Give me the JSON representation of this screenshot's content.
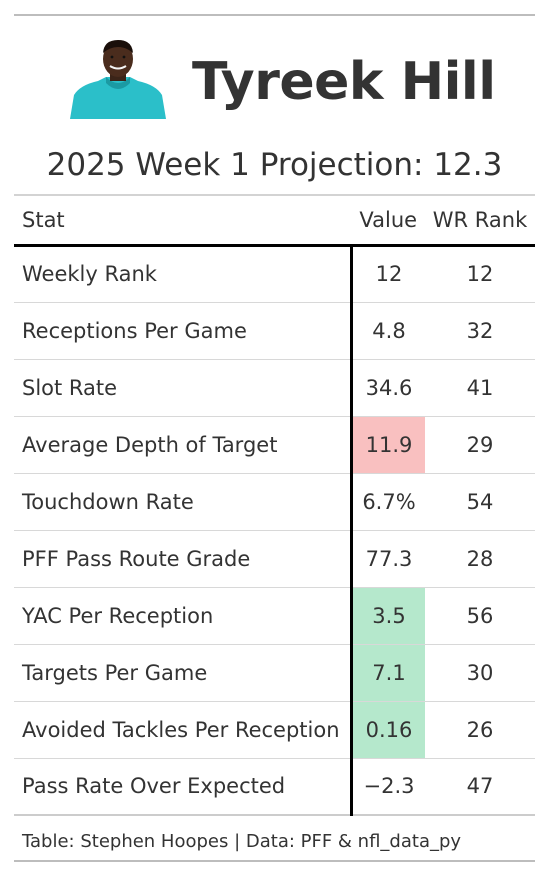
{
  "header": {
    "player_name": "Tyreek Hill",
    "subtitle": "2025 Week 1 Projection: 12.3"
  },
  "colors": {
    "highlight_red": "#f9c0c0",
    "highlight_green": "#b5e8cc",
    "jersey_teal": "#2bbfc9",
    "text": "#333333"
  },
  "table": {
    "columns": [
      "Stat",
      "Value",
      "WR Rank"
    ],
    "rows": [
      {
        "stat": "Weekly Rank",
        "value": "12",
        "rank": "12",
        "highlight": ""
      },
      {
        "stat": "Receptions Per Game",
        "value": "4.8",
        "rank": "32",
        "highlight": ""
      },
      {
        "stat": "Slot Rate",
        "value": "34.6",
        "rank": "41",
        "highlight": ""
      },
      {
        "stat": "Average Depth of Target",
        "value": "11.9",
        "rank": "29",
        "highlight": "red"
      },
      {
        "stat": "Touchdown Rate",
        "value": "6.7%",
        "rank": "54",
        "highlight": ""
      },
      {
        "stat": "PFF Pass Route Grade",
        "value": "77.3",
        "rank": "28",
        "highlight": ""
      },
      {
        "stat": "YAC Per Reception",
        "value": "3.5",
        "rank": "56",
        "highlight": "green"
      },
      {
        "stat": "Targets Per Game",
        "value": "7.1",
        "rank": "30",
        "highlight": "green"
      },
      {
        "stat": "Avoided Tackles Per Reception",
        "value": "0.16",
        "rank": "26",
        "highlight": "green"
      },
      {
        "stat": "Pass Rate Over Expected",
        "value": "−2.3",
        "rank": "47",
        "highlight": ""
      }
    ]
  },
  "footer": {
    "credit": "Table: Stephen Hoopes | Data: PFF & nfl_data_py"
  }
}
